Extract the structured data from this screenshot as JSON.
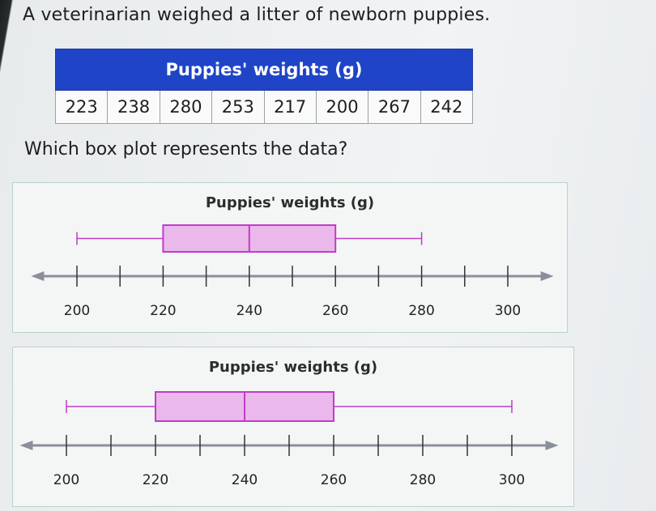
{
  "prompt": "A veterinarian weighed a litter of newborn puppies.",
  "table": {
    "header": "Puppies' weights (g)",
    "values": [
      "223",
      "238",
      "280",
      "253",
      "217",
      "200",
      "267",
      "242"
    ]
  },
  "question": "Which box plot represents the data?",
  "chart_data": [
    {
      "type": "box",
      "title": "Puppies' weights (g)",
      "min": 200,
      "q1": 220,
      "median": 240,
      "q3": 260,
      "max": 280,
      "axis": {
        "range": [
          195,
          305
        ],
        "ticks": [
          200,
          210,
          220,
          230,
          240,
          250,
          260,
          270,
          280,
          290,
          300
        ],
        "tick_labels": [
          "200",
          "220",
          "240",
          "260",
          "280",
          "300"
        ]
      },
      "colors": {
        "box_fill": "#eab8ea",
        "box_stroke": "#c03cc8",
        "axis": "#8a8f9c"
      }
    },
    {
      "type": "box",
      "title": "Puppies' weights (g)",
      "min": 200,
      "q1": 220,
      "median": 240,
      "q3": 260,
      "max": 300,
      "axis": {
        "range": [
          195,
          305
        ],
        "ticks": [
          200,
          210,
          220,
          230,
          240,
          250,
          260,
          270,
          280,
          290,
          300
        ],
        "tick_labels": [
          "200",
          "220",
          "240",
          "260",
          "280",
          "300"
        ]
      },
      "colors": {
        "box_fill": "#eab8ea",
        "box_stroke": "#c03cc8",
        "axis": "#8a8f9c"
      }
    }
  ]
}
